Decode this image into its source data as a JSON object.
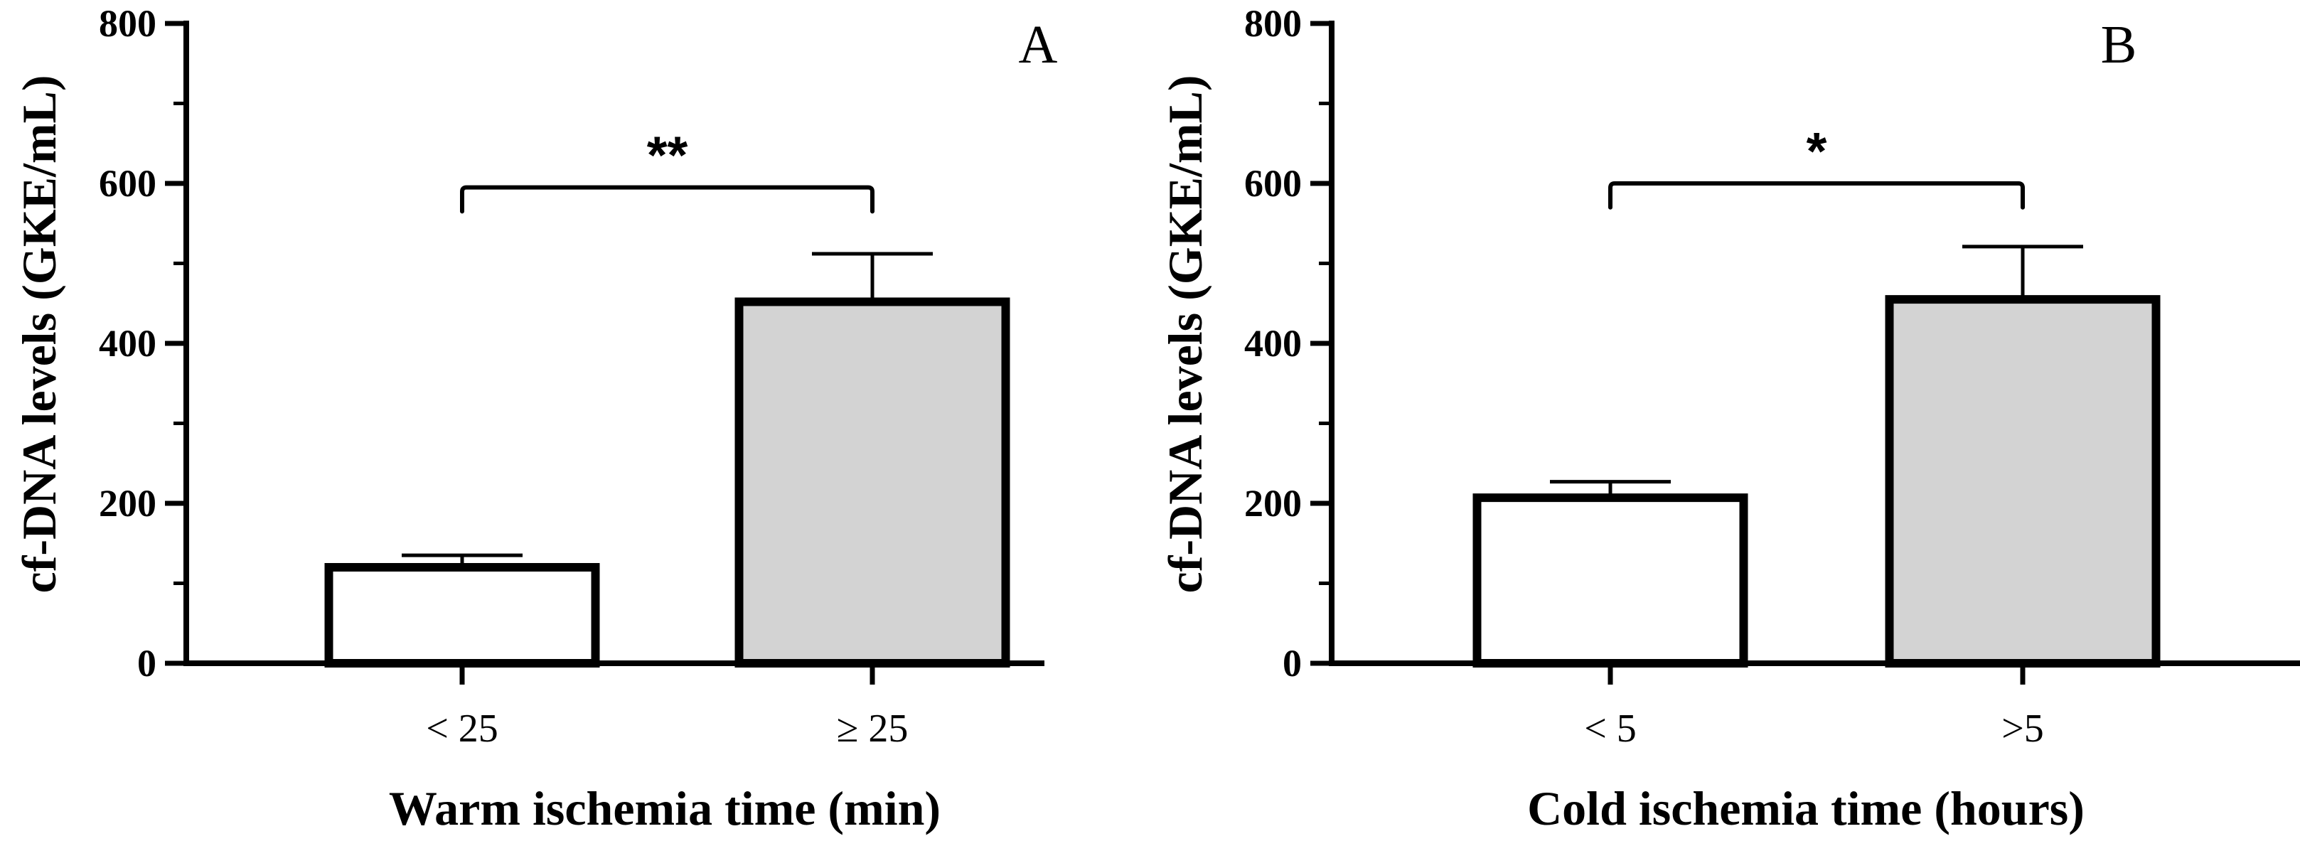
{
  "chart_data": [
    {
      "type": "bar",
      "panel_label": "A",
      "categories": [
        "< 25",
        "≥ 25"
      ],
      "values": [
        120,
        452
      ],
      "errors": [
        15,
        60
      ],
      "bar_colors": [
        "#ffffff",
        "#d3d3d3"
      ],
      "xlabel": "Warm ischemia time (min)",
      "ylabel": "cf-DNA levels (GKE/mL)",
      "ylim": [
        0,
        800
      ],
      "yticks": [
        0,
        200,
        400,
        600,
        800
      ],
      "ytick_labels": [
        "0",
        "200",
        "400",
        "600",
        "800"
      ],
      "minor_tick_step": 100,
      "significance": {
        "label": "**",
        "between": [
          0,
          1
        ],
        "bracket_y": 595,
        "leg_bottom_y": 565
      }
    },
    {
      "type": "bar",
      "panel_label": "B",
      "categories": [
        "< 5",
        ">5"
      ],
      "values": [
        207,
        455
      ],
      "errors": [
        20,
        66
      ],
      "bar_colors": [
        "#ffffff",
        "#d3d3d3"
      ],
      "xlabel": "Cold ischemia time (hours)",
      "ylabel": "cf-DNA levels (GKE/mL)",
      "ylim": [
        0,
        800
      ],
      "yticks": [
        0,
        200,
        400,
        600,
        800
      ],
      "ytick_labels": [
        "0",
        "200",
        "400",
        "600",
        "800"
      ],
      "minor_tick_step": 100,
      "significance": {
        "label": "*",
        "between": [
          0,
          1
        ],
        "bracket_y": 600,
        "leg_bottom_y": 570
      }
    }
  ]
}
